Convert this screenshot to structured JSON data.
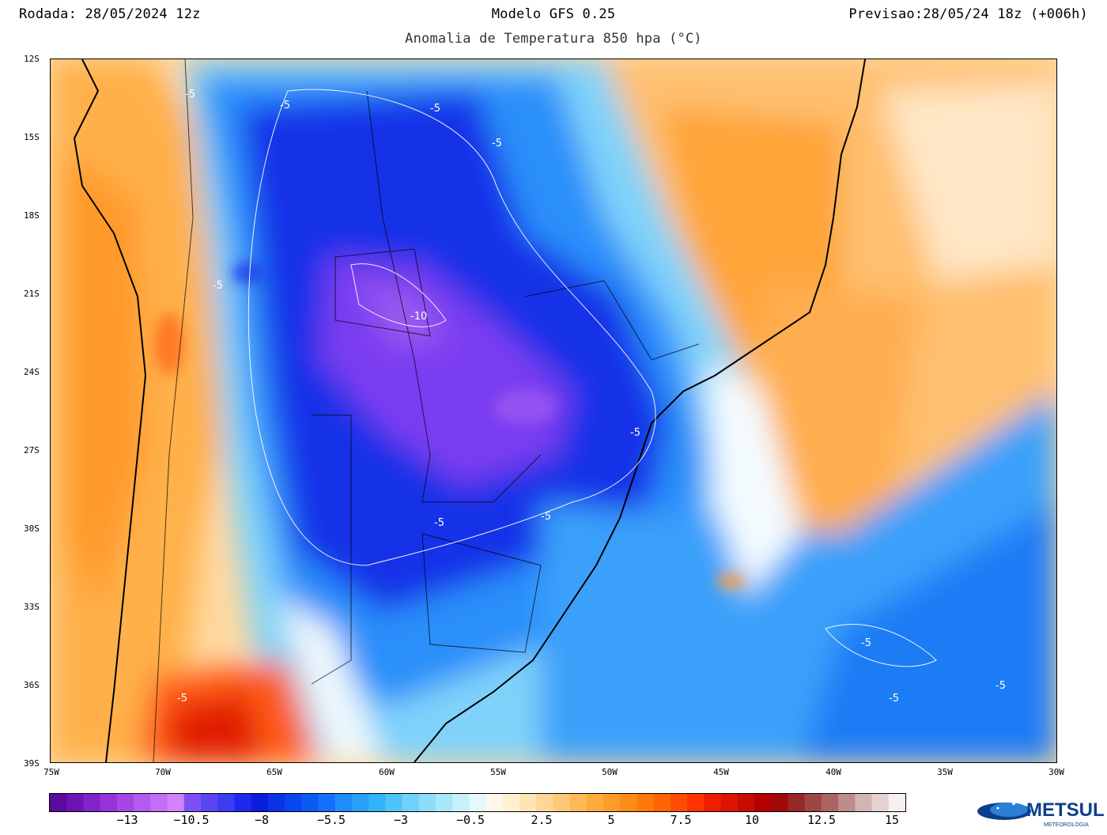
{
  "header": {
    "run": "Rodada: 28/05/2024 12z",
    "model": "Modelo GFS 0.25",
    "valid": "Previsao:28/05/24 18z (+006h)",
    "subtitle": "Anomalia de Temperatura 850 hpa (°C)"
  },
  "map": {
    "lat_labels": [
      "12S",
      "15S",
      "18S",
      "21S",
      "24S",
      "27S",
      "30S",
      "33S",
      "36S",
      "39S"
    ],
    "lon_labels": [
      "75W",
      "70W",
      "65W",
      "60W",
      "55W",
      "50W",
      "45W",
      "40W",
      "35W",
      "30W"
    ],
    "contour_labels": [
      "-5",
      "-5",
      "-5",
      "-5",
      "-10",
      "-5",
      "-5",
      "-5",
      "-5",
      "-5",
      "-5",
      "-5",
      "-5"
    ]
  },
  "colorbar": {
    "labels": [
      "−13",
      "−10.5",
      "−8",
      "−5.5",
      "−3",
      "−0.5",
      "2.5",
      "5",
      "7.5",
      "10",
      "12.5",
      "15"
    ],
    "colors": [
      "#5a0a9c",
      "#6e14b4",
      "#8223c8",
      "#9632dc",
      "#a546e6",
      "#b45af0",
      "#c36ef5",
      "#d282fa",
      "#7d50f5",
      "#5a46f0",
      "#3c3cf0",
      "#1e28f0",
      "#0a1edc",
      "#0a32e6",
      "#0a46f0",
      "#0a5af5",
      "#1470fa",
      "#1e8cfa",
      "#28a0fa",
      "#32b4fa",
      "#50c3fa",
      "#6ed2fa",
      "#8cdcfa",
      "#aae6fa",
      "#c8f0fa",
      "#e6f8fc",
      "#fff8ea",
      "#fff0d2",
      "#ffe4b4",
      "#ffd696",
      "#ffc878",
      "#ffb95a",
      "#ffaa3c",
      "#ff9b28",
      "#ff8c14",
      "#ff780a",
      "#ff6400",
      "#ff4b00",
      "#ff3200",
      "#f01e00",
      "#dc1400",
      "#c80a00",
      "#b40000",
      "#a00a0a",
      "#962828",
      "#9e4646",
      "#aa6464",
      "#be8c8c",
      "#d2b4b4",
      "#e6d2d2",
      "#f8f0f0"
    ]
  },
  "logo": {
    "brand": "METSUL",
    "tagline": "METEOROLOGIA"
  }
}
